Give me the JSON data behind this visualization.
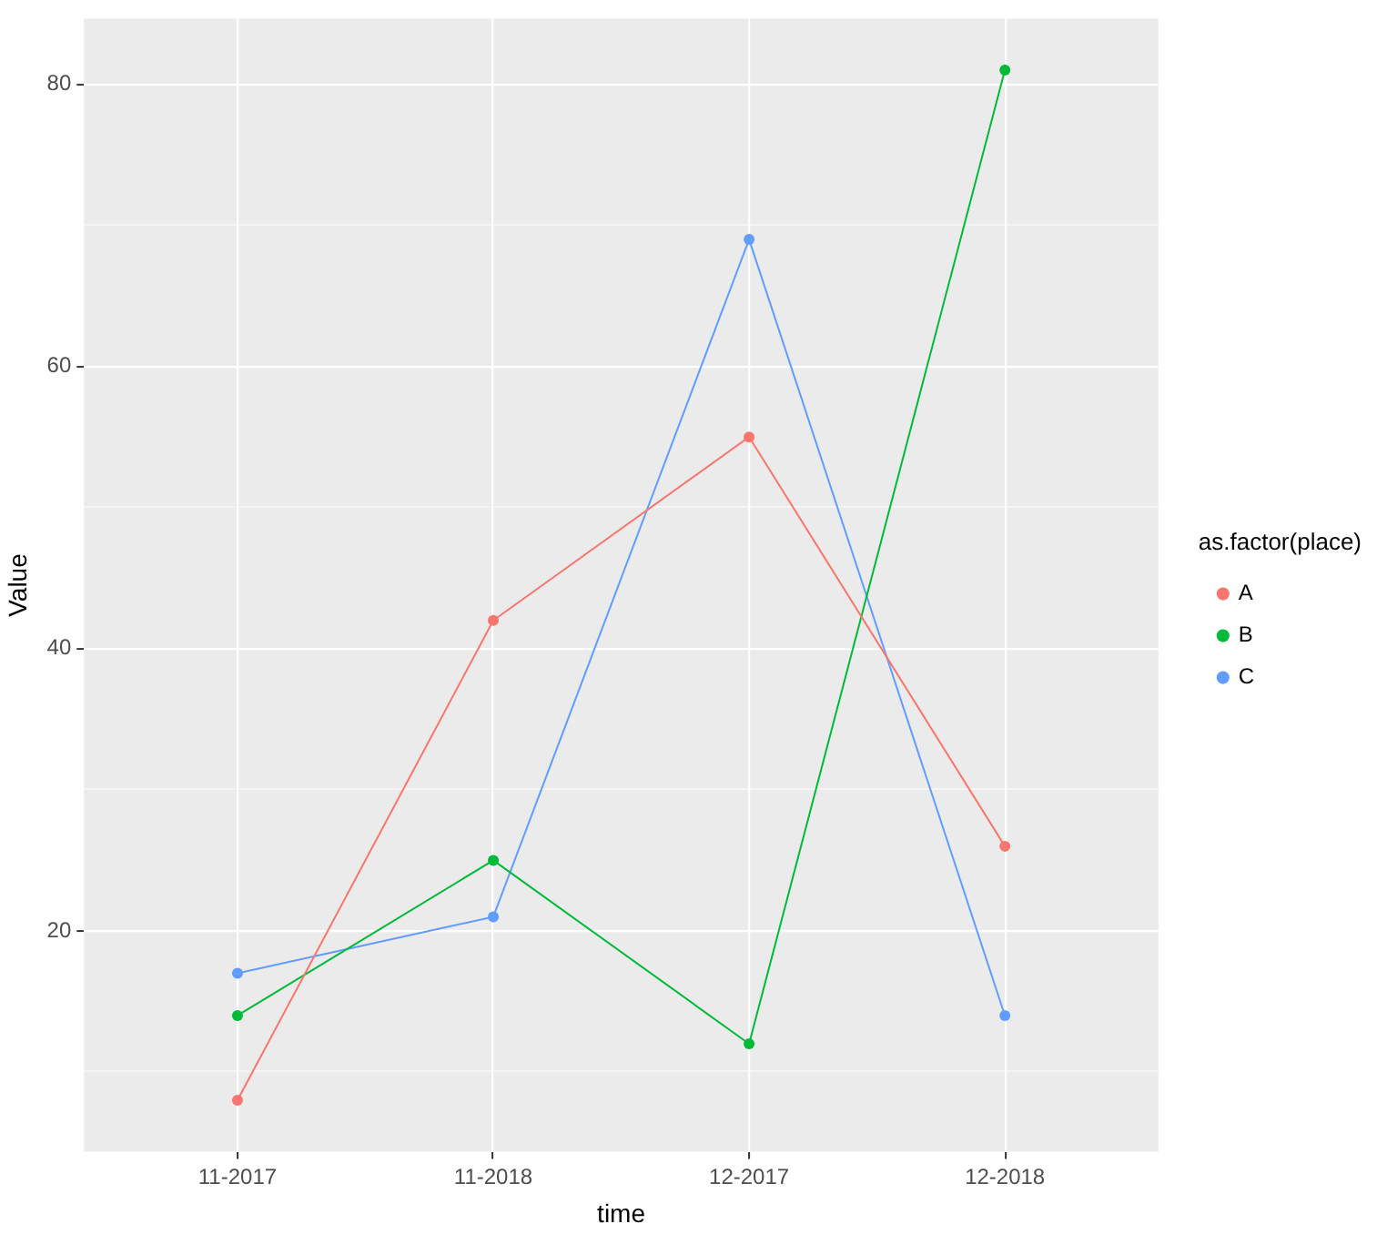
{
  "chart_data": {
    "type": "line",
    "xlabel": "time",
    "ylabel": "Value",
    "legend_title": "as.factor(place)",
    "categories": [
      "11-2017",
      "11-2018",
      "12-2017",
      "12-2018"
    ],
    "series": [
      {
        "name": "A",
        "color": "#f8766d",
        "values": [
          8,
          42,
          55,
          26
        ]
      },
      {
        "name": "B",
        "color": "#00ba38",
        "values": [
          14,
          25,
          12,
          81
        ]
      },
      {
        "name": "C",
        "color": "#619cff",
        "values": [
          17,
          21,
          69,
          14
        ]
      }
    ],
    "ylim": [
      4.35,
      84.65
    ],
    "yticks": [
      {
        "value": 10,
        "label": null
      },
      20,
      {
        "value": 30,
        "label": null
      },
      40,
      {
        "value": 50,
        "label": null
      },
      60,
      {
        "value": 70,
        "label": null
      },
      80
    ],
    "grid": true,
    "legend": "right",
    "marker": "circle",
    "line_style": "solid"
  }
}
